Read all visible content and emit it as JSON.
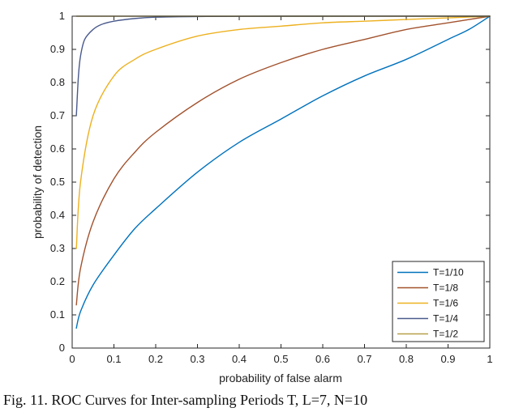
{
  "caption": "Fig. 11. ROC Curves for Inter-sampling Periods T, L=7, N=10",
  "chart_data": {
    "type": "line",
    "xlabel": "probability of false alarm",
    "ylabel": "probability of detection",
    "xlim": [
      0,
      1
    ],
    "ylim": [
      0,
      1
    ],
    "xticks": [
      "0",
      "0.1",
      "0.2",
      "0.3",
      "0.4",
      "0.5",
      "0.6",
      "0.7",
      "0.8",
      "0.9",
      "1"
    ],
    "yticks": [
      "0",
      "0.1",
      "0.2",
      "0.3",
      "0.4",
      "0.5",
      "0.6",
      "0.7",
      "0.8",
      "0.9",
      "1"
    ],
    "grid": false,
    "legend_position": "bottom-right",
    "series": [
      {
        "name": "T=1/10",
        "color": "#0072BD",
        "x": [
          0.01,
          0.02,
          0.05,
          0.1,
          0.15,
          0.2,
          0.3,
          0.4,
          0.5,
          0.6,
          0.7,
          0.8,
          0.9,
          0.95,
          1.0
        ],
        "y": [
          0.06,
          0.11,
          0.19,
          0.28,
          0.36,
          0.42,
          0.53,
          0.62,
          0.69,
          0.76,
          0.82,
          0.87,
          0.93,
          0.96,
          1.0
        ]
      },
      {
        "name": "T=1/8",
        "color": "#A2522D",
        "x": [
          0.01,
          0.02,
          0.05,
          0.1,
          0.15,
          0.2,
          0.3,
          0.4,
          0.5,
          0.6,
          0.7,
          0.8,
          0.9,
          1.0
        ],
        "y": [
          0.13,
          0.24,
          0.38,
          0.51,
          0.59,
          0.65,
          0.74,
          0.81,
          0.86,
          0.9,
          0.93,
          0.96,
          0.98,
          1.0
        ]
      },
      {
        "name": "T=1/6",
        "color": "#EDB120",
        "x": [
          0.01,
          0.02,
          0.05,
          0.1,
          0.15,
          0.2,
          0.3,
          0.4,
          0.5,
          0.6,
          0.7,
          0.8,
          0.9,
          1.0
        ],
        "y": [
          0.3,
          0.5,
          0.7,
          0.82,
          0.87,
          0.9,
          0.94,
          0.96,
          0.97,
          0.98,
          0.985,
          0.99,
          0.995,
          1.0
        ]
      },
      {
        "name": "T=1/4",
        "color": "#4A5A8C",
        "x": [
          0.01,
          0.015,
          0.02,
          0.03,
          0.05,
          0.07,
          0.1,
          0.15,
          0.2,
          0.3,
          0.5,
          1.0
        ],
        "y": [
          0.7,
          0.82,
          0.88,
          0.93,
          0.96,
          0.975,
          0.985,
          0.993,
          0.997,
          0.999,
          1.0,
          1.0
        ]
      },
      {
        "name": "T=1/2",
        "color": "#B8A04A",
        "x": [
          0.01,
          0.05,
          0.1,
          0.3,
          0.5,
          0.7,
          1.0
        ],
        "y": [
          1.0,
          1.0,
          1.0,
          1.0,
          1.0,
          1.0,
          1.0
        ]
      }
    ]
  }
}
